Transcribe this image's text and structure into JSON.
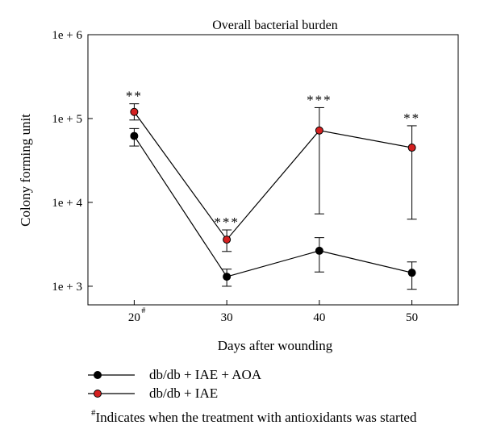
{
  "chart_data": {
    "type": "line",
    "title": "Overall bacterial burden",
    "xlabel": "Days after wounding",
    "ylabel": "Colony forming unit",
    "y_scale": "log",
    "ylim": [
      600,
      1000000
    ],
    "xlim": [
      15,
      55
    ],
    "x_ticks": [
      {
        "value": 20,
        "label": "20",
        "mark": "#"
      },
      {
        "value": 30,
        "label": "30",
        "mark": ""
      },
      {
        "value": 40,
        "label": "40",
        "mark": ""
      },
      {
        "value": 50,
        "label": "50",
        "mark": ""
      }
    ],
    "y_ticks": [
      {
        "value": 1000,
        "label": "1e + 3"
      },
      {
        "value": 10000,
        "label": "1e + 4"
      },
      {
        "value": 100000,
        "label": "1e + 5"
      },
      {
        "value": 1000000,
        "label": "1e + 6"
      }
    ],
    "grid": false,
    "legend_position": "bottom-left",
    "series": [
      {
        "name": "db/db + IAE + AOA",
        "color": "#000000",
        "x": [
          20,
          30,
          40,
          50
        ],
        "y": [
          62000,
          1300,
          2650,
          1450
        ],
        "err_low": [
          47000,
          1000,
          1480,
          920
        ],
        "err_high": [
          76000,
          1600,
          3800,
          1950
        ]
      },
      {
        "name": "db/db + IAE",
        "color": "#d42020",
        "x": [
          20,
          30,
          40,
          50
        ],
        "y": [
          120000,
          3600,
          72000,
          45000
        ],
        "err_low": [
          96000,
          2600,
          7300,
          6300
        ],
        "err_high": [
          150000,
          4700,
          135000,
          82000
        ]
      }
    ],
    "annotations": [
      {
        "x": 20,
        "y": 150000,
        "text": "**"
      },
      {
        "x": 30,
        "y": 4700,
        "text": "***"
      },
      {
        "x": 40,
        "y": 135000,
        "text": "***"
      },
      {
        "x": 50,
        "y": 82000,
        "text": "**"
      }
    ],
    "footnote_mark": "#",
    "footnote": "Indicates when the treatment with antioxidants was started"
  }
}
